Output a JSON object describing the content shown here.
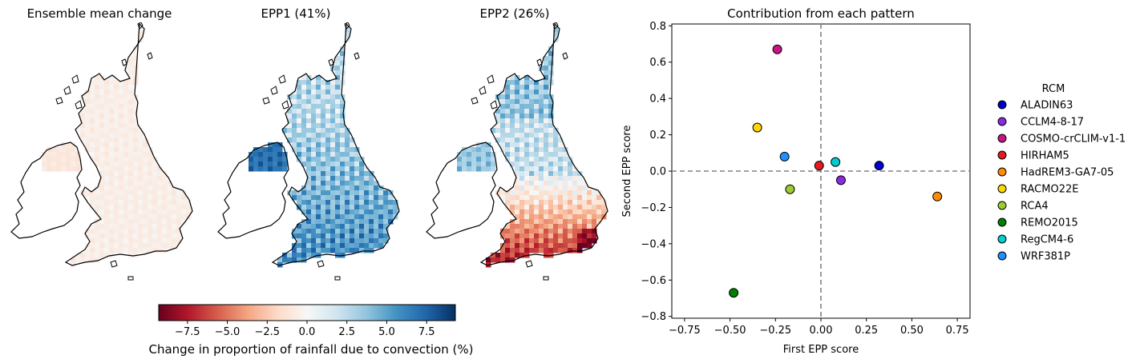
{
  "maps": [
    {
      "title": "Ensemble mean change",
      "colour_mode": "mean"
    },
    {
      "title": "EPP1 (41%)",
      "colour_mode": "epp1"
    },
    {
      "title": "EPP2 (26%)",
      "colour_mode": "epp2"
    }
  ],
  "colorbar": {
    "label": "Change in proportion of rainfall due to convection (%)",
    "ticks": [
      "−7.5",
      "−5.0",
      "−2.5",
      "0.0",
      "2.5",
      "5.0",
      "7.5"
    ],
    "tick_values": [
      -7.5,
      -5.0,
      -2.5,
      0.0,
      2.5,
      5.0,
      7.5
    ],
    "range": [
      -9.3,
      9.3
    ],
    "colormap": "RdBu",
    "stops": [
      "#67001f",
      "#b2182b",
      "#d6604d",
      "#f4a582",
      "#fddbc7",
      "#f7f7f7",
      "#d1e5f0",
      "#92c5de",
      "#4393c3",
      "#2166ac",
      "#053061"
    ]
  },
  "chart_data": {
    "type": "scatter",
    "title": "Contribution from each pattern",
    "xlabel": "First EPP score",
    "ylabel": "Second EPP score",
    "xlim": [
      -0.82,
      0.82
    ],
    "ylim": [
      -0.81,
      0.81
    ],
    "xticks": [
      -0.75,
      -0.5,
      -0.25,
      0.0,
      0.25,
      0.5,
      0.75
    ],
    "xtick_labels": [
      "−0.75",
      "−0.50",
      "−0.25",
      "0.00",
      "0.25",
      "0.50",
      "0.75"
    ],
    "yticks": [
      -0.8,
      -0.6,
      -0.4,
      -0.2,
      0.0,
      0.2,
      0.4,
      0.6,
      0.8
    ],
    "ytick_labels": [
      "−0.8",
      "−0.6",
      "−0.4",
      "−0.2",
      "0.0",
      "0.2",
      "0.4",
      "0.6",
      "0.8"
    ],
    "grid": false,
    "reference_lines": "dashed grey lines at x = 0 and y = 0",
    "legend_title": "RCM",
    "legend_placement": "outside right",
    "series": [
      {
        "name": "ALADIN63",
        "x": 0.32,
        "y": 0.03,
        "color": "#0000cd"
      },
      {
        "name": "CCLM4-8-17",
        "x": 0.11,
        "y": -0.05,
        "color": "#8a2be2"
      },
      {
        "name": "COSMO-crCLIM-v1-1",
        "x": -0.24,
        "y": 0.67,
        "color": "#c71585"
      },
      {
        "name": "HIRHAM5",
        "x": -0.01,
        "y": 0.03,
        "color": "#e41a1c"
      },
      {
        "name": "HadREM3-GA7-05",
        "x": 0.64,
        "y": -0.14,
        "color": "#ff8c00"
      },
      {
        "name": "RACMO22E",
        "x": -0.35,
        "y": 0.24,
        "color": "#ffd700"
      },
      {
        "name": "RCA4",
        "x": -0.17,
        "y": -0.1,
        "color": "#9acd32"
      },
      {
        "name": "REMO2015",
        "x": -0.48,
        "y": -0.67,
        "color": "#008000"
      },
      {
        "name": "RegCM4-6",
        "x": 0.08,
        "y": 0.05,
        "color": "#00ced1"
      },
      {
        "name": "WRF381P",
        "x": -0.2,
        "y": 0.08,
        "color": "#1e90ff"
      }
    ]
  }
}
